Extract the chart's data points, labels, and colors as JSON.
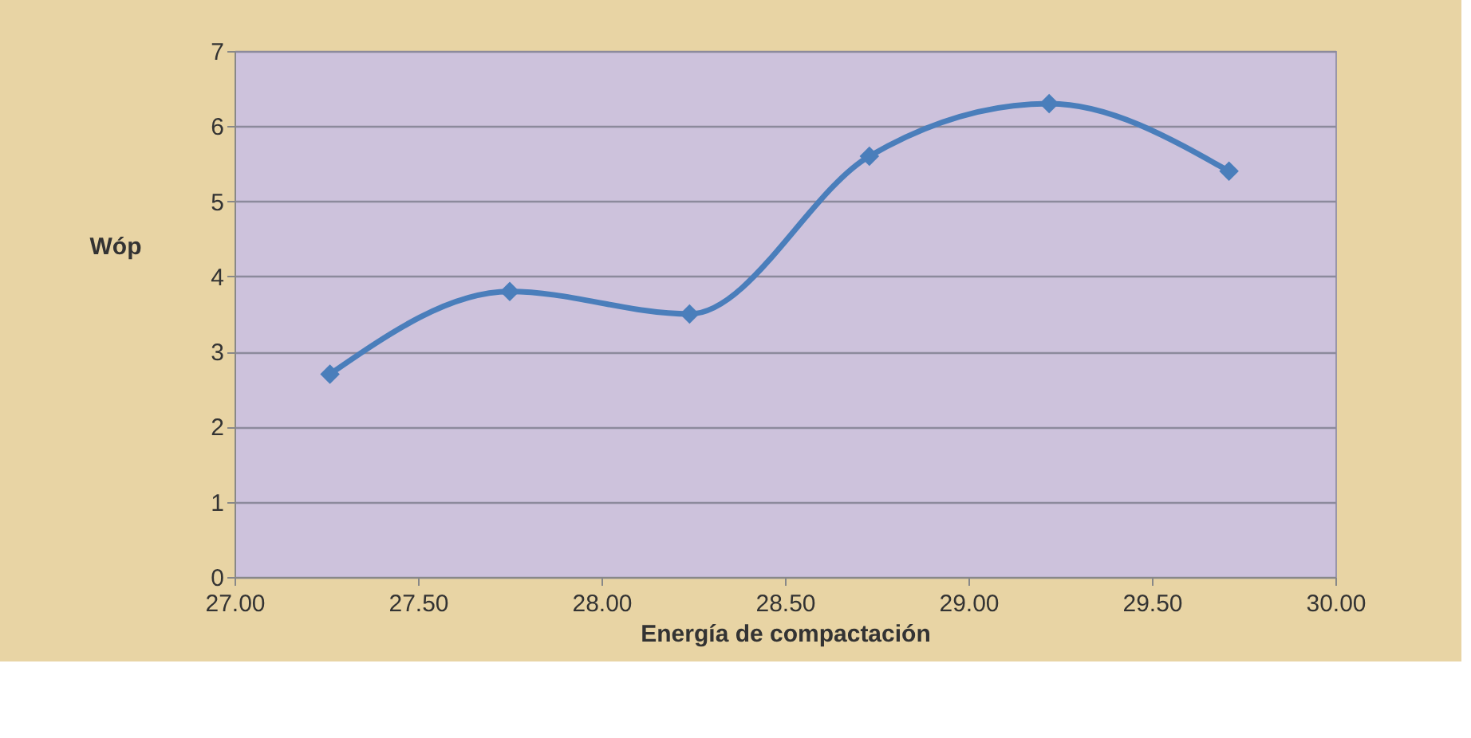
{
  "chart_data": {
    "type": "line",
    "xlabel": "Energía de compactación",
    "ylabel": "Wóp",
    "x": [
      27.26,
      27.75,
      28.24,
      28.73,
      29.22,
      29.71
    ],
    "series": [
      {
        "color": "#4a7ebb",
        "values": [
          2.7,
          3.8,
          3.5,
          5.6,
          6.3,
          5.4
        ]
      }
    ],
    "xlim": [
      27.0,
      30.0
    ],
    "xticks": [
      {
        "value": 27.0,
        "label": "27.00"
      },
      {
        "value": 27.5,
        "label": "27.50"
      },
      {
        "value": 28.0,
        "label": "28.00"
      },
      {
        "value": 28.5,
        "label": "28.50"
      },
      {
        "value": 29.0,
        "label": "29.00"
      },
      {
        "value": 29.5,
        "label": "29.50"
      },
      {
        "value": 30.0,
        "label": "30.00"
      }
    ],
    "ylim": [
      0,
      7
    ],
    "yticks": [
      0,
      1,
      2,
      3,
      4,
      5,
      6,
      7
    ],
    "grid": "y",
    "marker": "diamond",
    "line_style": "solid"
  }
}
